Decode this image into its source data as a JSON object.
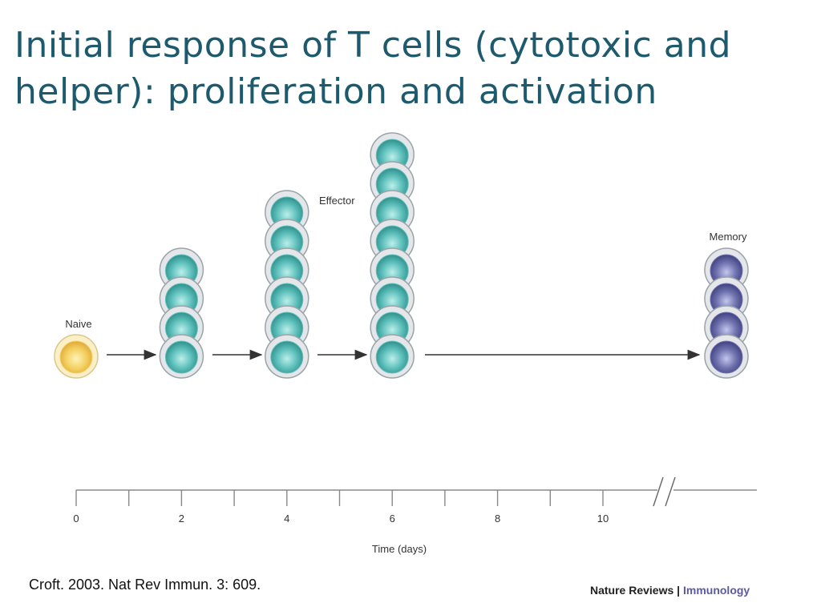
{
  "slide": {
    "title": "Initial response of T cells (cytotoxic and helper): proliferation and activation",
    "citation": "Croft. 2003. Nat Rev Immun. 3: 609.",
    "journal_prefix": "Nature Reviews",
    "journal_separator": "|",
    "journal_name": "Immunology"
  },
  "diagram": {
    "labels": {
      "naive": "Naive",
      "effector": "Effector",
      "memory": "Memory"
    },
    "cell_groups": [
      {
        "id": "naive",
        "day": 0,
        "count": 1,
        "type": "naive"
      },
      {
        "id": "day2",
        "day": 2,
        "count": 4,
        "type": "effector"
      },
      {
        "id": "day4",
        "day": 4,
        "count": 6,
        "type": "effector"
      },
      {
        "id": "day6",
        "day": 6,
        "count": 8,
        "type": "effector"
      },
      {
        "id": "memory",
        "day": null,
        "count": 4,
        "type": "memory"
      }
    ],
    "colors": {
      "naive": "#f3cf5e",
      "effector": "#5fc1bd",
      "memory": "#6f72ae"
    },
    "timeline": {
      "axis_label": "Time (days)",
      "tick_labels": [
        "0",
        "2",
        "4",
        "6",
        "8",
        "10"
      ],
      "axis_break": true
    }
  }
}
